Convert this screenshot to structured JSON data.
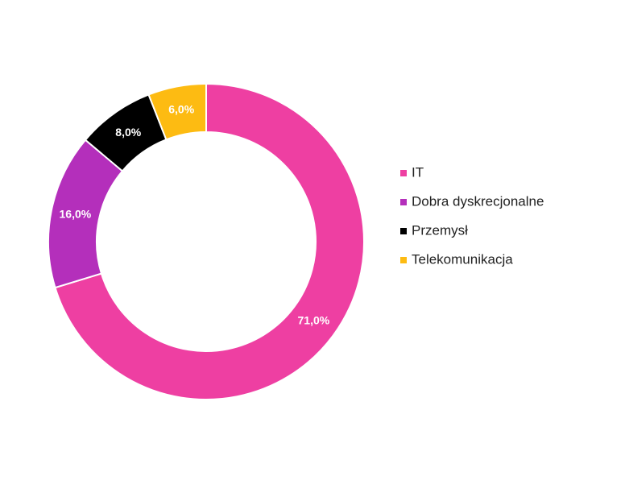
{
  "chart_data": {
    "type": "donut",
    "categories": [
      "IT",
      "Dobra dyskrecjonalne",
      "Przemysł",
      "Telekomunikacja"
    ],
    "values": [
      71,
      16,
      8,
      6
    ],
    "value_labels": [
      "71,0%",
      "16,0%",
      "8,0%",
      "6,0%"
    ],
    "colors": [
      "#ee3fa2",
      "#b42fbb",
      "#000000",
      "#fdbb12"
    ],
    "legend": "right"
  }
}
